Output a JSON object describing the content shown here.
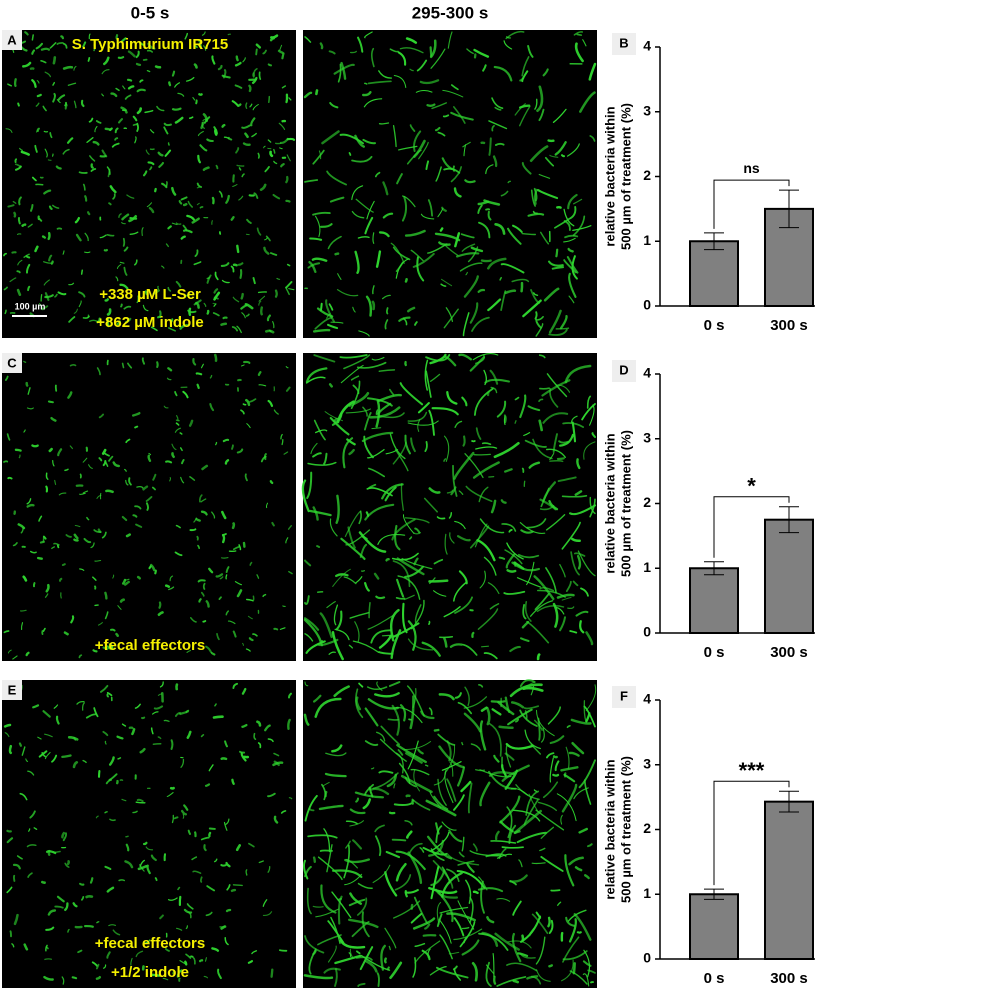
{
  "figure": {
    "columns": [
      "0-5 s",
      "295-300 s"
    ],
    "panels": [
      {
        "letter": "A",
        "labels": [
          "S. Typhimurium IR715",
          "+338 µM L-Ser",
          "+862 µM indole"
        ],
        "scale_bar": "100 µm"
      },
      {
        "letter": "C",
        "labels": [
          "+fecal effectors"
        ]
      },
      {
        "letter": "E",
        "labels": [
          "+fecal effectors",
          "+1/2 indole"
        ]
      }
    ]
  },
  "chart_data": [
    {
      "type": "bar",
      "panel": "B",
      "ylabel": [
        "relative bacteria within",
        "500 µm of treatment (%)"
      ],
      "categories": [
        "0 s",
        "300 s"
      ],
      "values": [
        1,
        1.5
      ],
      "errors": [
        0.13,
        0.29
      ],
      "color": "#808080",
      "ylim": [
        0,
        4
      ],
      "yticks": [
        0,
        1,
        2,
        3,
        4
      ],
      "annotation": "ns"
    },
    {
      "type": "bar",
      "panel": "D",
      "ylabel": [
        "relative bacteria within",
        "500 µm of treatment (%)"
      ],
      "categories": [
        "0 s",
        "300 s"
      ],
      "values": [
        1,
        1.75
      ],
      "errors": [
        0.1,
        0.2
      ],
      "color": "#808080",
      "ylim": [
        0,
        4
      ],
      "yticks": [
        0,
        1,
        2,
        3,
        4
      ],
      "annotation": "*"
    },
    {
      "type": "bar",
      "panel": "F",
      "ylabel": [
        "relative bacteria within",
        "500 µm of treatment (%)"
      ],
      "categories": [
        "0 s",
        "300 s"
      ],
      "values": [
        1,
        2.43
      ],
      "errors": [
        0.08,
        0.16
      ],
      "color": "#808080",
      "ylim": [
        0,
        4
      ],
      "yticks": [
        0,
        1,
        2,
        3,
        4
      ],
      "annotation": "***"
    }
  ]
}
